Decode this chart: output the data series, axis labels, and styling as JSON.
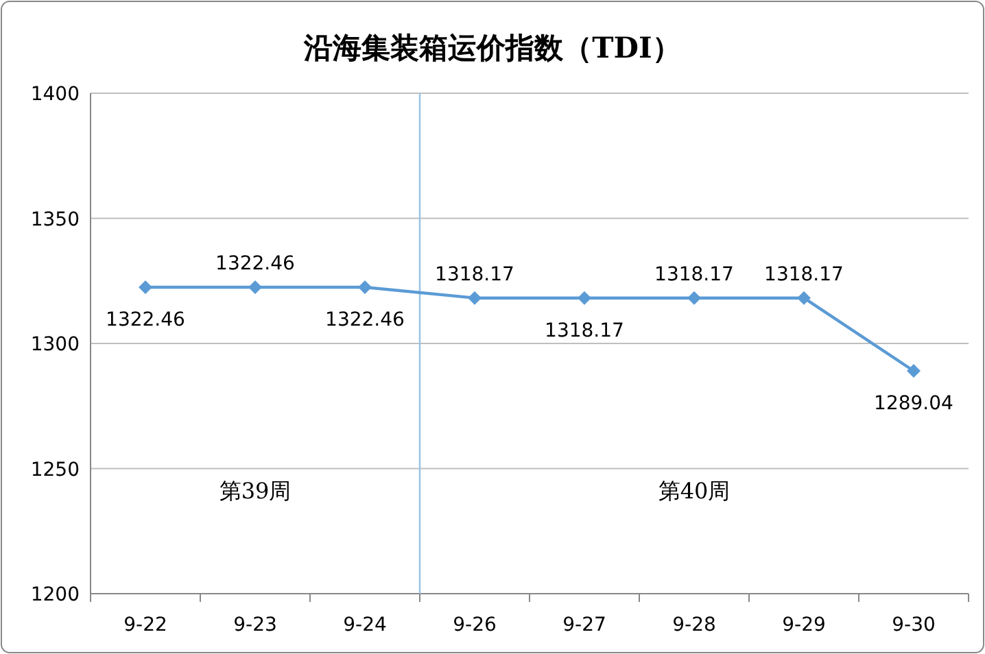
{
  "chart_data": {
    "type": "line",
    "title": "沿海集装箱运价指数（TDI）",
    "categories": [
      "9-22",
      "9-23",
      "9-24",
      "9-26",
      "9-27",
      "9-28",
      "9-29",
      "9-30"
    ],
    "series": [
      {
        "color": "#5b9bd5",
        "values": [
          1322.46,
          1322.46,
          1322.46,
          1318.17,
          1318.17,
          1318.17,
          1318.17,
          1289.04
        ]
      }
    ],
    "ylim": [
      1200,
      1400
    ],
    "yticks": [
      1200,
      1250,
      1300,
      1350,
      1400
    ],
    "grid": "y",
    "marker": "diamond",
    "line_style": "solid",
    "data_labels": true,
    "annotations": [
      "第39周",
      "第40周"
    ],
    "ref_lines": [
      {
        "axis": "x",
        "value": "9-26",
        "color": "#9dc3e6",
        "line_style": "solid"
      }
    ]
  }
}
